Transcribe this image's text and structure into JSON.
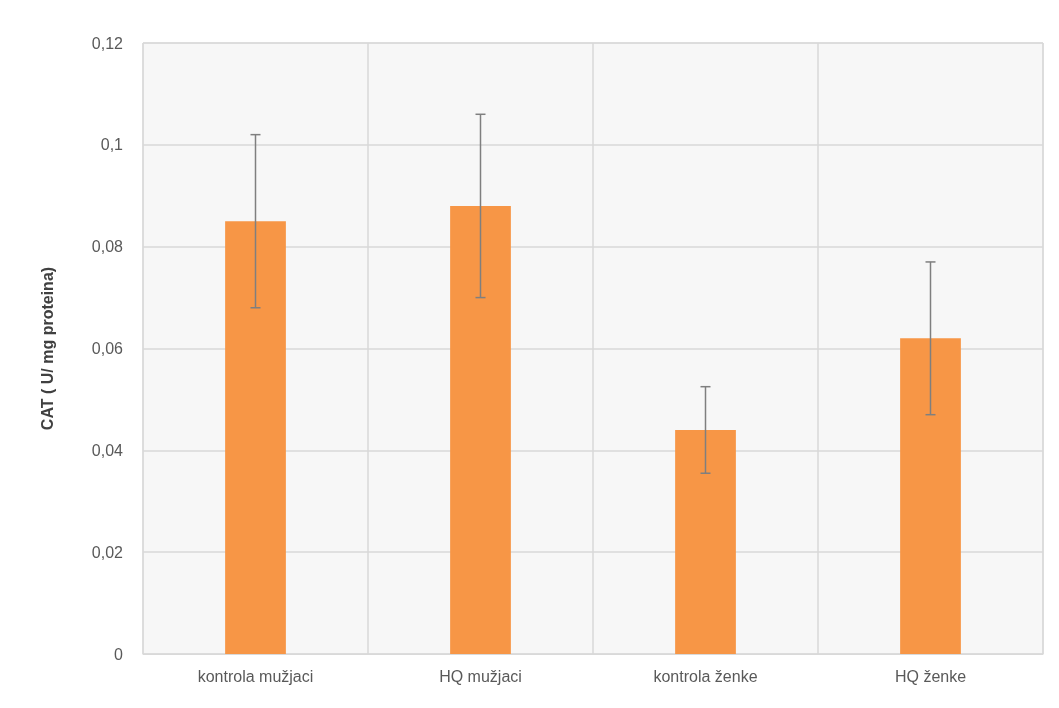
{
  "chart_data": {
    "type": "bar",
    "ylabel": "CAT ( U/ mg proteina)",
    "categories": [
      "kontrola mužjaci",
      "HQ mužjaci",
      "kontrola ženke",
      "HQ ženke"
    ],
    "values": [
      0.085,
      0.088,
      0.044,
      0.062
    ],
    "color": "#f79646",
    "errors": [
      0.017,
      0.018,
      0.0085,
      0.015
    ],
    "ylim": [
      0,
      0.12
    ],
    "yticks": [
      0,
      {
        "value": 0.02,
        "label": "0,02"
      },
      {
        "value": 0.04,
        "label": "0,04"
      },
      {
        "value": 0.06,
        "label": "0,06"
      },
      {
        "value": 0.08,
        "label": "0,08"
      },
      {
        "value": 0.1,
        "label": "0,1"
      },
      {
        "value": 0.12,
        "label": "0,12"
      }
    ],
    "grid": true
  }
}
